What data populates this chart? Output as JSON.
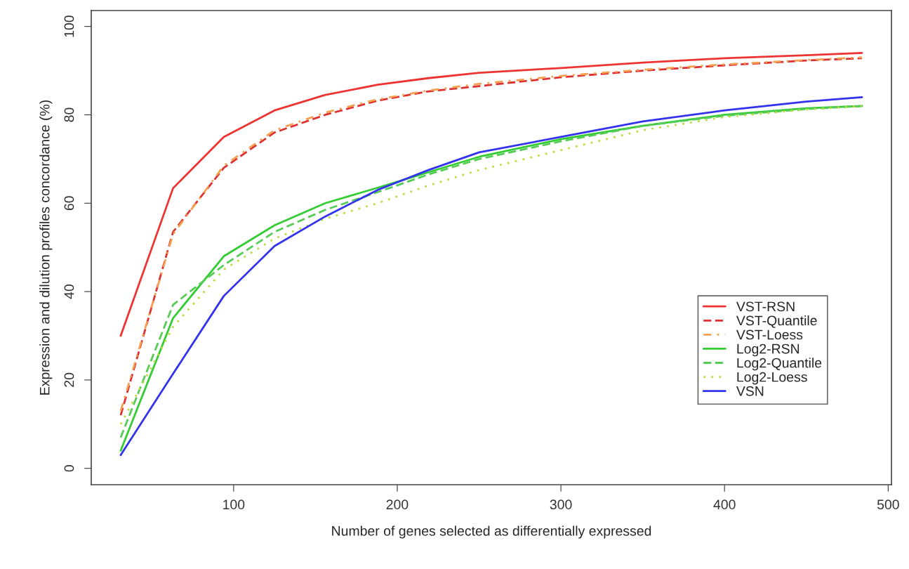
{
  "chart_data": {
    "type": "line",
    "xlabel": "Number of genes selected as differentially expressed",
    "ylabel": "Expression and dilution profiles concordance (%)",
    "x": [
      31,
      63,
      94,
      125,
      156,
      188,
      219,
      250,
      300,
      350,
      400,
      450,
      484
    ],
    "series": [
      {
        "name": "VST-RSN",
        "color": "#ee3333",
        "line_style": "solid",
        "values": [
          30,
          63.4,
          75,
          81,
          84.5,
          86.8,
          88.3,
          89.5,
          90.6,
          91.8,
          92.8,
          93.5,
          94
        ]
      },
      {
        "name": "VST-Quantile",
        "color": "#dd3030",
        "line_style": "dashed",
        "values": [
          12,
          53.5,
          68,
          76,
          80,
          83.2,
          85.3,
          86.5,
          88.5,
          90,
          91.2,
          92.3,
          92.8
        ]
      },
      {
        "name": "VST-Loess",
        "color": "#f5a050",
        "line_style": "dashdot",
        "values": [
          13,
          53,
          68.5,
          76.5,
          80.5,
          83.5,
          85.5,
          87,
          88.8,
          90.2,
          91.4,
          92.4,
          93
        ]
      },
      {
        "name": "Log2-RSN",
        "color": "#33cc33",
        "line_style": "solid",
        "values": [
          4,
          34,
          48,
          55,
          60,
          63.5,
          67,
          70.5,
          74.5,
          77.5,
          80,
          81.5,
          82
        ]
      },
      {
        "name": "Log2-Quantile",
        "color": "#55cc55",
        "line_style": "dashed",
        "values": [
          7,
          37,
          46,
          53.5,
          58.5,
          62.5,
          66.5,
          70,
          74,
          77.5,
          79.8,
          81.3,
          82
        ]
      },
      {
        "name": "Log2-Loess",
        "color": "#bbdd44",
        "line_style": "dotted",
        "values": [
          10,
          32,
          45,
          52,
          56.5,
          60,
          64,
          67.5,
          72,
          76.5,
          79.5,
          81.2,
          82
        ]
      },
      {
        "name": "VSN",
        "color": "#3333ee",
        "line_style": "solid",
        "values": [
          3,
          21.4,
          39,
          50.3,
          57,
          63,
          67.5,
          71.5,
          75,
          78.5,
          81,
          83,
          84
        ]
      }
    ],
    "xlim": [
      13,
      502
    ],
    "ylim": [
      -3.7,
      103.6
    ],
    "xticks": [
      100,
      200,
      300,
      400,
      500
    ],
    "yticks": [
      0,
      20,
      40,
      60,
      80,
      100
    ],
    "grid": false,
    "legend": "bottom right",
    "marker": "none"
  }
}
